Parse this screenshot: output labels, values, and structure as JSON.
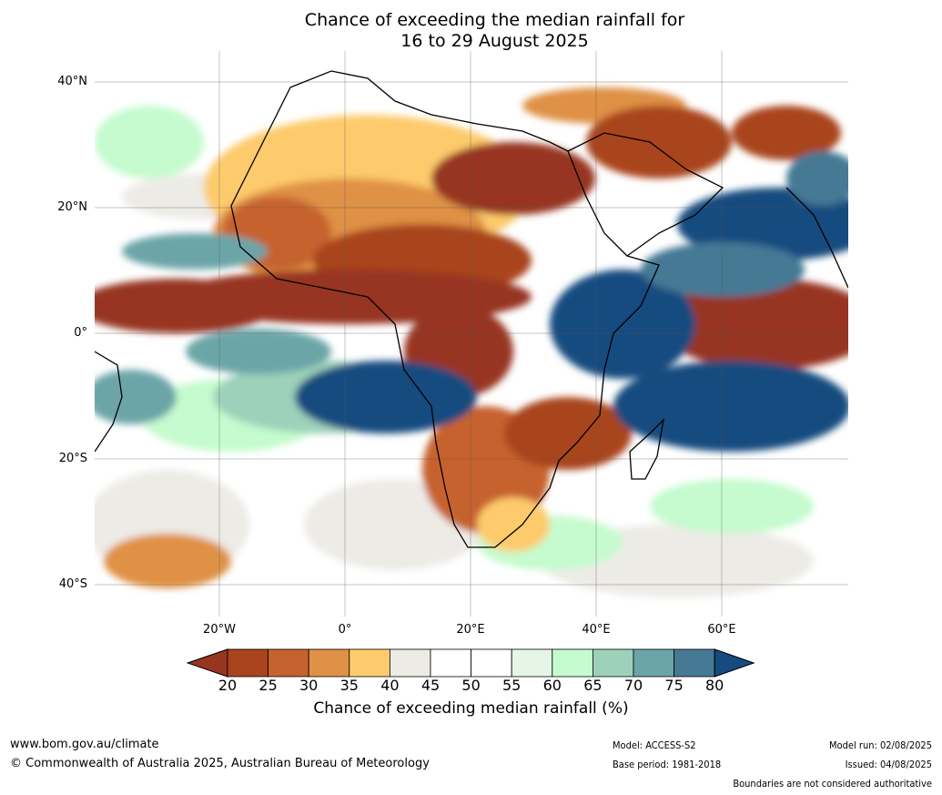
{
  "title_line1": "Chance of exceeding the median rainfall for",
  "title_line2": "16 to 29 August 2025",
  "lat_labels": [
    "40°N",
    "20°N",
    "0°",
    "20°S",
    "40°S"
  ],
  "lon_labels": [
    "20°W",
    "0°",
    "20°E",
    "40°E",
    "60°E"
  ],
  "colorbar": {
    "ticks": [
      "20",
      "25",
      "30",
      "35",
      "40",
      "45",
      "50",
      "55",
      "60",
      "65",
      "70",
      "75",
      "80"
    ],
    "colors": [
      "#973520",
      "#a9441f",
      "#c6622e",
      "#df9145",
      "#fdcb6c",
      "#edebe6",
      "#ffffff",
      "#ffffff",
      "#e5f6e6",
      "#c5fbce",
      "#9dd1ba",
      "#6ca5a8",
      "#457994",
      "#174b7f"
    ],
    "title": "Chance of exceeding median rainfall (%)"
  },
  "footer": {
    "website": "www.bom.gov.au/climate",
    "copyright": "© Commonwealth of Australia 2025, Australian Bureau of Meteorology",
    "model": "Model: ACCESS-S2",
    "base_period": "Base period: 1981-2018",
    "model_run": "Model run: 02/08/2025",
    "issued": "Issued: 04/08/2025",
    "disclaimer": "Boundaries are not considered authoritative"
  }
}
